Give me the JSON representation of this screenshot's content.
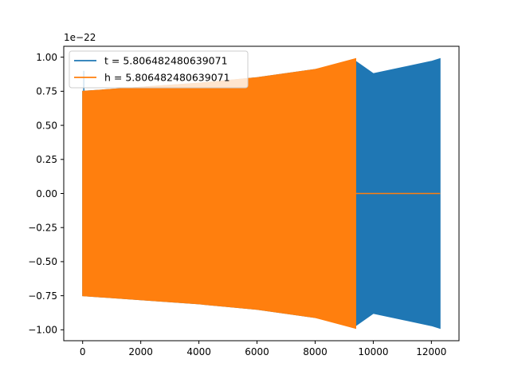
{
  "chart_data": {
    "type": "line",
    "title": "",
    "xlabel": "",
    "ylabel": "",
    "offset_label": "1e−22",
    "xlim": [
      -650,
      12950
    ],
    "ylim": [
      -1.08,
      1.08
    ],
    "x_ticks": [
      0,
      2000,
      4000,
      6000,
      8000,
      10000,
      12000
    ],
    "y_ticks": [
      -1.0,
      -0.75,
      -0.5,
      -0.25,
      0.0,
      0.25,
      0.5,
      0.75,
      1.0
    ],
    "y_tick_labels": [
      "−1.00",
      "−0.75",
      "−0.50",
      "−0.25",
      "0.00",
      "0.25",
      "0.50",
      "0.75",
      "1.00"
    ],
    "grid": false,
    "legend_position": "top-left",
    "series": [
      {
        "name": "t = 5.806482480639071",
        "color": "#1f77b4",
        "x_start": 0,
        "x_end": 12300,
        "envelope_x": [
          0,
          2000,
          4000,
          6000,
          8000,
          9400,
          10000,
          12000,
          12300
        ],
        "envelope_amplitude": [
          0.75,
          0.78,
          0.81,
          0.85,
          0.91,
          0.97,
          0.88,
          0.97,
          0.99
        ],
        "spike_x": 40,
        "spike_amplitude": 0.9
      },
      {
        "name": "h = 5.806482480639071",
        "color": "#ff7f0e",
        "x_start": 0,
        "x_end": 9400,
        "envelope_x": [
          0,
          2000,
          4000,
          6000,
          8000,
          9400
        ],
        "envelope_amplitude": [
          0.75,
          0.78,
          0.81,
          0.85,
          0.91,
          0.99
        ],
        "flat_x": [
          9400,
          12300
        ],
        "flat_value": 0.0
      }
    ]
  }
}
